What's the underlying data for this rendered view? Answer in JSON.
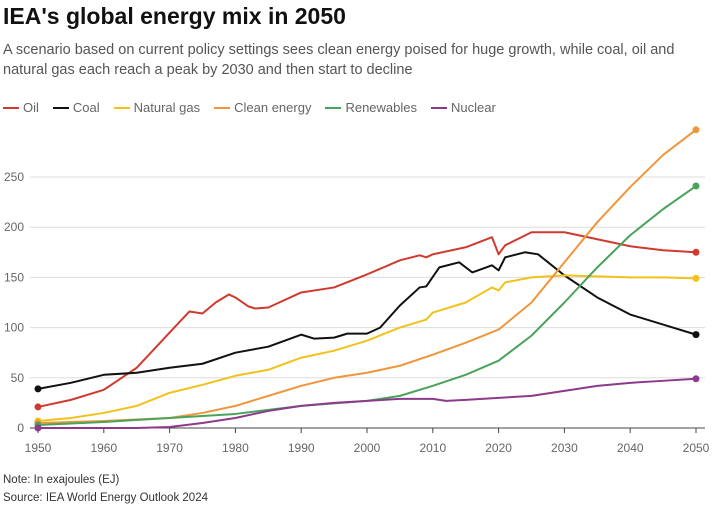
{
  "title": "IEA's global energy mix in 2050",
  "subtitle": "A scenario based on current policy settings sees clean energy poised for huge growth, while coal, oil and natural gas each reach a peak by 2030 and then start to decline",
  "note": "Note: In exajoules (EJ)",
  "source": "Source: IEA World Energy Outlook 2024",
  "chart_data": {
    "type": "line",
    "title": "IEA's global energy mix in 2050",
    "xlabel": "",
    "ylabel": "EJ",
    "xlim": [
      1950,
      2050
    ],
    "ylim": [
      0,
      250
    ],
    "xticks": [
      1950,
      1960,
      1970,
      1980,
      1990,
      2000,
      2010,
      2020,
      2030,
      2040,
      2050
    ],
    "yticks": [
      0,
      50,
      100,
      150,
      200,
      250
    ],
    "grid": true,
    "legend": "top-left",
    "series": [
      {
        "name": "Oil",
        "color": "#d03a2e",
        "points": [
          [
            1950,
            21
          ],
          [
            1955,
            28
          ],
          [
            1960,
            38
          ],
          [
            1965,
            60
          ],
          [
            1970,
            95
          ],
          [
            1973,
            116
          ],
          [
            1975,
            114
          ],
          [
            1977,
            125
          ],
          [
            1979,
            133
          ],
          [
            1980,
            130
          ],
          [
            1982,
            121
          ],
          [
            1983,
            119
          ],
          [
            1985,
            120
          ],
          [
            1990,
            135
          ],
          [
            1995,
            140
          ],
          [
            2000,
            153
          ],
          [
            2005,
            167
          ],
          [
            2008,
            172
          ],
          [
            2009,
            170
          ],
          [
            2010,
            173
          ],
          [
            2015,
            180
          ],
          [
            2019,
            190
          ],
          [
            2020,
            173
          ],
          [
            2021,
            182
          ],
          [
            2025,
            195
          ],
          [
            2030,
            195
          ],
          [
            2035,
            188
          ],
          [
            2040,
            181
          ],
          [
            2045,
            177
          ],
          [
            2050,
            175
          ]
        ]
      },
      {
        "name": "Coal",
        "color": "#111111",
        "points": [
          [
            1950,
            39
          ],
          [
            1955,
            45
          ],
          [
            1960,
            53
          ],
          [
            1965,
            55
          ],
          [
            1970,
            60
          ],
          [
            1975,
            64
          ],
          [
            1980,
            75
          ],
          [
            1985,
            81
          ],
          [
            1990,
            93
          ],
          [
            1992,
            89
          ],
          [
            1995,
            90
          ],
          [
            1997,
            94
          ],
          [
            2000,
            94
          ],
          [
            2002,
            100
          ],
          [
            2005,
            122
          ],
          [
            2008,
            140
          ],
          [
            2009,
            141
          ],
          [
            2011,
            160
          ],
          [
            2014,
            165
          ],
          [
            2016,
            155
          ],
          [
            2019,
            162
          ],
          [
            2020,
            157
          ],
          [
            2021,
            170
          ],
          [
            2024,
            175
          ],
          [
            2026,
            173
          ],
          [
            2030,
            152
          ],
          [
            2035,
            130
          ],
          [
            2040,
            113
          ],
          [
            2045,
            103
          ],
          [
            2050,
            93
          ]
        ]
      },
      {
        "name": "Natural gas",
        "color": "#f2c21b",
        "points": [
          [
            1950,
            7
          ],
          [
            1955,
            10
          ],
          [
            1960,
            15
          ],
          [
            1965,
            22
          ],
          [
            1970,
            35
          ],
          [
            1975,
            43
          ],
          [
            1980,
            52
          ],
          [
            1985,
            58
          ],
          [
            1990,
            70
          ],
          [
            1995,
            77
          ],
          [
            2000,
            87
          ],
          [
            2005,
            100
          ],
          [
            2009,
            108
          ],
          [
            2010,
            115
          ],
          [
            2015,
            125
          ],
          [
            2019,
            140
          ],
          [
            2020,
            137
          ],
          [
            2021,
            145
          ],
          [
            2025,
            150
          ],
          [
            2030,
            152
          ],
          [
            2035,
            151
          ],
          [
            2040,
            150
          ],
          [
            2045,
            150
          ],
          [
            2050,
            149
          ]
        ]
      },
      {
        "name": "Clean energy",
        "color": "#f0963a",
        "points": [
          [
            1950,
            5
          ],
          [
            1960,
            7
          ],
          [
            1970,
            10
          ],
          [
            1975,
            15
          ],
          [
            1980,
            22
          ],
          [
            1985,
            32
          ],
          [
            1990,
            42
          ],
          [
            1995,
            50
          ],
          [
            2000,
            55
          ],
          [
            2005,
            62
          ],
          [
            2010,
            73
          ],
          [
            2015,
            85
          ],
          [
            2020,
            98
          ],
          [
            2025,
            125
          ],
          [
            2030,
            165
          ],
          [
            2035,
            205
          ],
          [
            2040,
            240
          ],
          [
            2045,
            272
          ],
          [
            2050,
            297
          ]
        ]
      },
      {
        "name": "Renewables",
        "color": "#4aa35a",
        "points": [
          [
            1950,
            3
          ],
          [
            1960,
            6
          ],
          [
            1970,
            10
          ],
          [
            1980,
            14
          ],
          [
            1990,
            22
          ],
          [
            2000,
            27
          ],
          [
            2005,
            32
          ],
          [
            2010,
            42
          ],
          [
            2015,
            53
          ],
          [
            2020,
            67
          ],
          [
            2025,
            92
          ],
          [
            2030,
            125
          ],
          [
            2035,
            160
          ],
          [
            2040,
            192
          ],
          [
            2045,
            218
          ],
          [
            2050,
            241
          ]
        ]
      },
      {
        "name": "Nuclear",
        "color": "#8e3a8c",
        "points": [
          [
            1950,
            0
          ],
          [
            1965,
            0
          ],
          [
            1970,
            1
          ],
          [
            1975,
            5
          ],
          [
            1980,
            10
          ],
          [
            1985,
            17
          ],
          [
            1990,
            22
          ],
          [
            1995,
            25
          ],
          [
            2000,
            27
          ],
          [
            2005,
            29
          ],
          [
            2010,
            29
          ],
          [
            2012,
            27
          ],
          [
            2015,
            28
          ],
          [
            2020,
            30
          ],
          [
            2025,
            32
          ],
          [
            2030,
            37
          ],
          [
            2035,
            42
          ],
          [
            2040,
            45
          ],
          [
            2045,
            47
          ],
          [
            2050,
            49
          ]
        ]
      }
    ]
  }
}
